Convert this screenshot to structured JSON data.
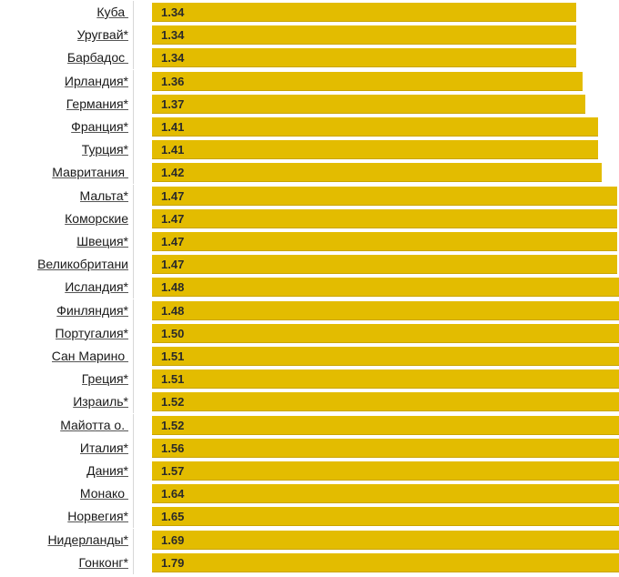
{
  "chart_data": {
    "type": "bar",
    "orientation": "horizontal",
    "categories": [
      "Куба ",
      "Уругвай*",
      "Барбадос ",
      "Ирландия*",
      "Германия*",
      "Франция*",
      "Турция*",
      "Мавритания ",
      "Мальта*",
      "Коморские",
      "Швеция*",
      "Великобритани",
      "Исландия*",
      "Финляндия*",
      "Португалия*",
      "Сан Марино ",
      "Греция*",
      "Израиль*",
      "Майотта о. ",
      "Италия*",
      "Дания*",
      "Монако ",
      "Норвегия*",
      "Нидерланды*",
      "Гонконг*"
    ],
    "values": [
      1.34,
      1.34,
      1.34,
      1.36,
      1.37,
      1.41,
      1.41,
      1.42,
      1.47,
      1.47,
      1.47,
      1.47,
      1.48,
      1.48,
      1.5,
      1.51,
      1.51,
      1.52,
      1.52,
      1.56,
      1.57,
      1.64,
      1.65,
      1.69,
      1.79
    ],
    "value_labels": [
      "1.34",
      "1.34",
      "1.34",
      "1.36",
      "1.37",
      "1.41",
      "1.41",
      "1.42",
      "1.47",
      "1.47",
      "1.47",
      "1.47",
      "1.48",
      "1.48",
      "1.50",
      "1.51",
      "1.51",
      "1.52",
      "1.52",
      "1.56",
      "1.57",
      "1.64",
      "1.65",
      "1.69",
      "1.79"
    ],
    "colors": {
      "bar": "#e3bc00",
      "bar_edge": "#c9a400",
      "label_text": "#1a1a1a",
      "value_text": "#2a2a2a"
    },
    "title": "",
    "xlabel": "",
    "ylabel": "",
    "grid": false,
    "legend": "none"
  }
}
